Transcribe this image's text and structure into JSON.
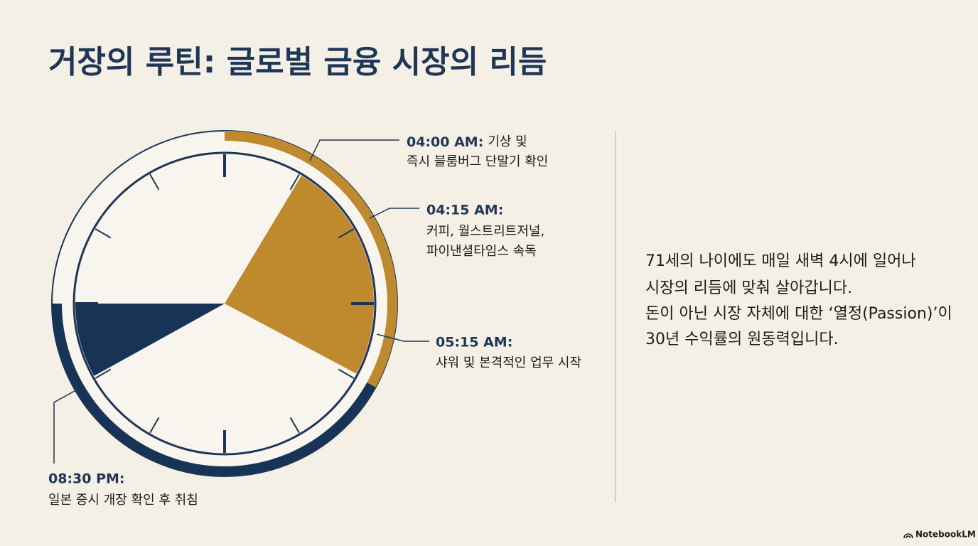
{
  "title": "거장의 루틴: 글로벌 금융 시장의 리듬",
  "annotations": [
    {
      "time": "04:00 AM:",
      "lines": [
        "기상 및",
        "즉시 블룸버그 단말기 확인"
      ]
    },
    {
      "time": "04:15 AM:",
      "lines": [
        "커피, 월스트리트저널,",
        "파이낸셜타임스 속독"
      ]
    },
    {
      "time": "05:15 AM:",
      "lines": [
        "샤워 및 본격적인 업무 시작"
      ]
    },
    {
      "time": "08:30 PM:",
      "lines": [
        "일본 증시 개장 확인 후 취침"
      ]
    }
  ],
  "description": [
    "71세의 나이에도 매일 새벽 4시에 일어나",
    "시장의 리듬에 맞춰 살아갑니다.",
    "돈이 아닌 시장 자체에 대한 ‘열정(Passion)’이",
    "30년 수익률의 원동력입니다."
  ],
  "footer": "NotebookLM"
}
